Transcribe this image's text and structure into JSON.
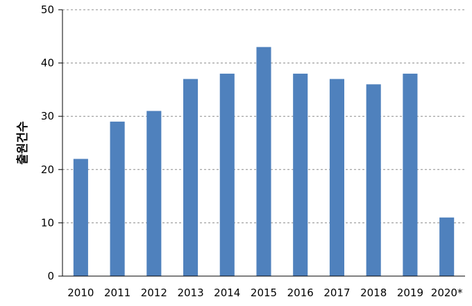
{
  "chart_data": {
    "type": "bar",
    "title": "",
    "xlabel": "",
    "ylabel": "출원건수",
    "categories": [
      "2010",
      "2011",
      "2012",
      "2013",
      "2014",
      "2015",
      "2016",
      "2017",
      "2018",
      "2019",
      "2020*"
    ],
    "values": [
      22,
      29,
      31,
      37,
      38,
      43,
      38,
      37,
      36,
      38,
      11
    ],
    "ylim": [
      0,
      50
    ],
    "yticks": [
      0,
      10,
      20,
      30,
      40,
      50
    ],
    "grid": true,
    "legend": "none",
    "bar_color": "#4f81bd",
    "grid_color": "#8c8c8c"
  }
}
